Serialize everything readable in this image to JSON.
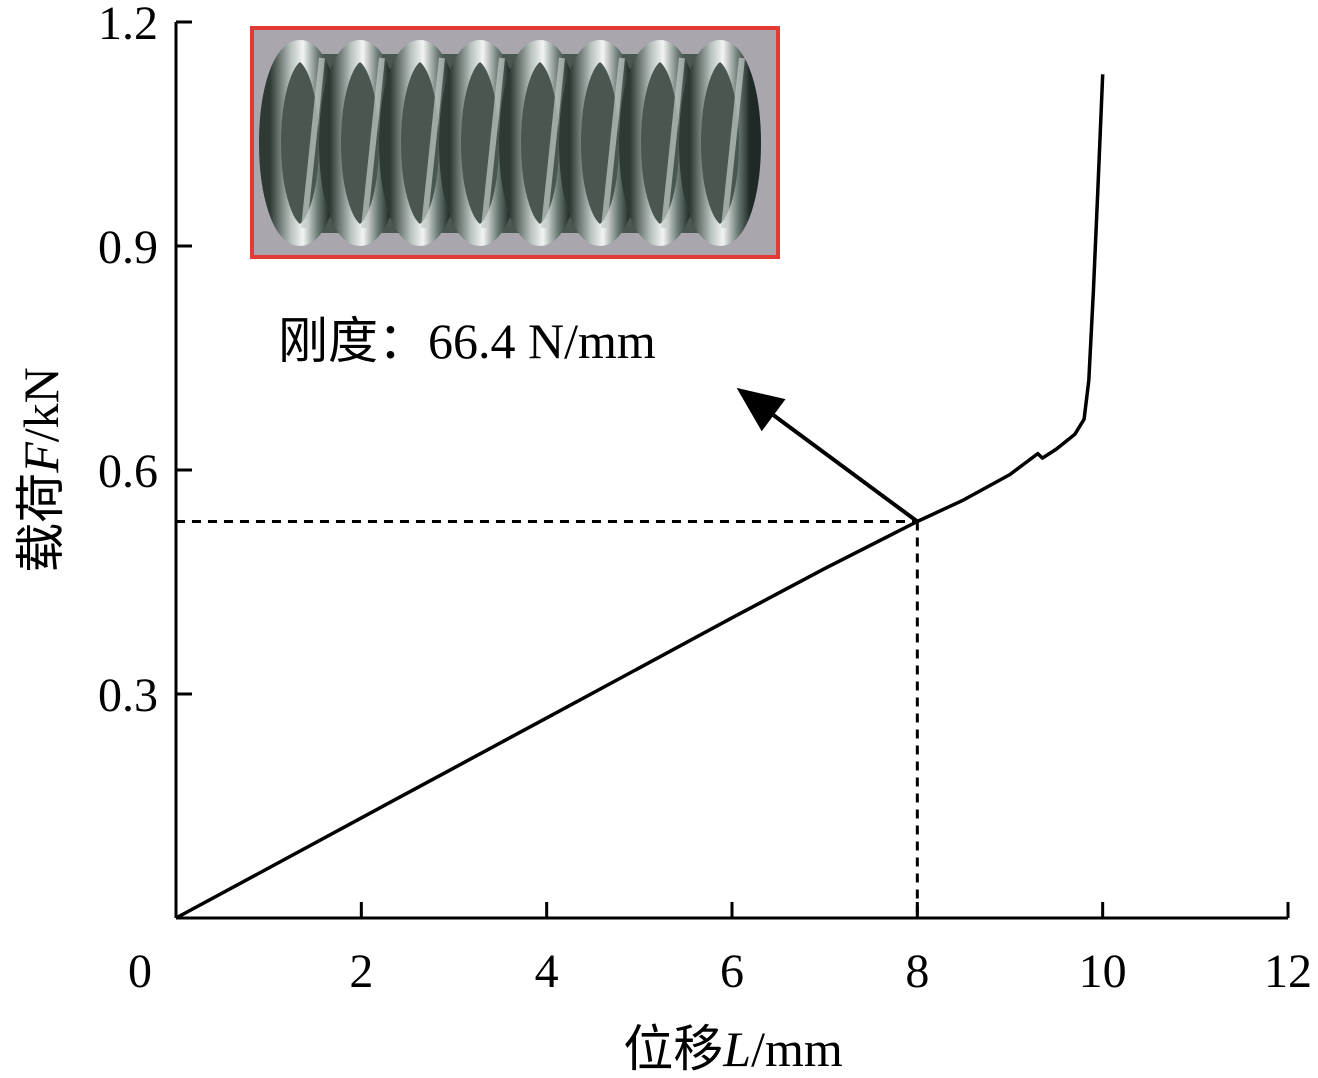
{
  "chart_data": {
    "type": "line",
    "title": "",
    "xlabel": "位移L/mm",
    "ylabel": "载荷F/kN",
    "x_ticks": [
      "0",
      "2",
      "4",
      "6",
      "8",
      "10",
      "12"
    ],
    "y_ticks": [
      "0.3",
      "0.6",
      "0.9",
      "1.2"
    ],
    "xlim": [
      0,
      12
    ],
    "ylim": [
      0,
      1.2
    ],
    "grid": false,
    "legend": "none",
    "series": [
      {
        "x": [
          0,
          1,
          2,
          3,
          4,
          5,
          6,
          7,
          8,
          8.5,
          9,
          9.3,
          9.35,
          9.5,
          9.7,
          9.8,
          9.85,
          9.9,
          9.95,
          10.0
        ],
        "y": [
          0,
          0.067,
          0.134,
          0.201,
          0.268,
          0.335,
          0.402,
          0.468,
          0.531,
          0.56,
          0.594,
          0.622,
          0.616,
          0.628,
          0.648,
          0.668,
          0.72,
          0.84,
          0.98,
          1.13
        ]
      }
    ],
    "marker": {
      "x": 8,
      "y": 0.531,
      "style": "dashed-guides"
    },
    "annotation": {
      "text": "刚度：66.4 N/mm",
      "arrow_from": {
        "x": 8,
        "y": 0.531
      },
      "arrow_to": {
        "x": 6.05,
        "y": 0.71
      }
    },
    "inset": {
      "subject": "steel-coil-spring-photo",
      "border_color": "#e53935"
    }
  }
}
